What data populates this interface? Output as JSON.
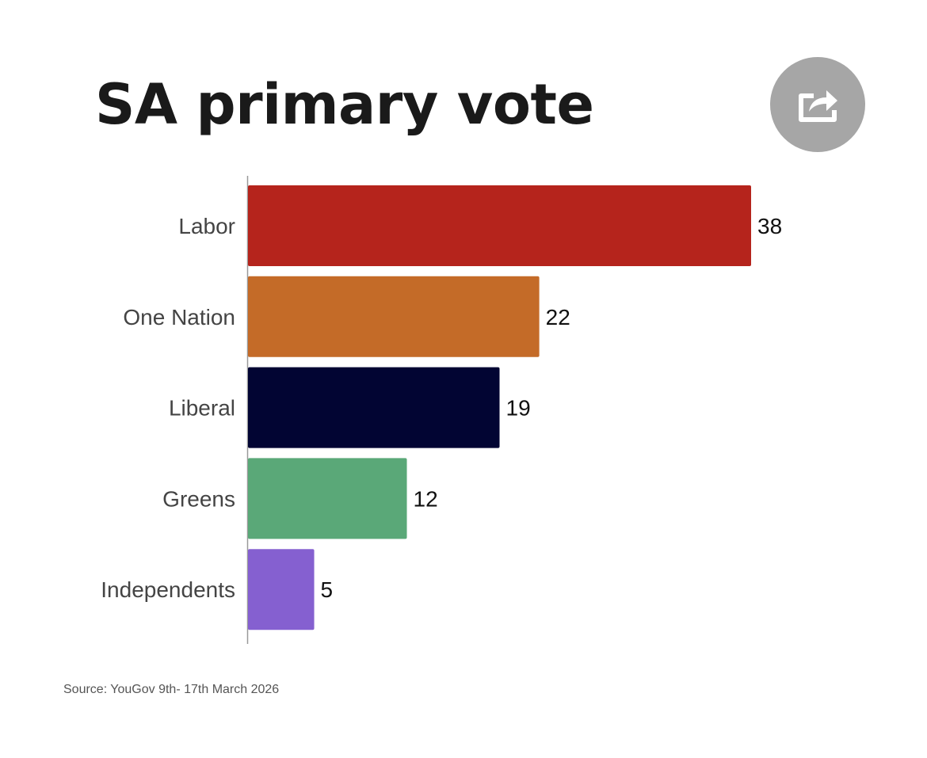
{
  "title": "SA primary vote",
  "share": {
    "icon": "share-icon"
  },
  "source": "Source: YouGov 9th- 17th March 2026",
  "chart_data": {
    "type": "bar",
    "orientation": "horizontal",
    "title": "SA primary vote",
    "categories": [
      "Labor",
      "One Nation",
      "Liberal",
      "Greens",
      "Independents"
    ],
    "values": [
      38,
      22,
      19,
      12,
      5
    ],
    "colors": [
      "#b5241c",
      "#c46b28",
      "#020533",
      "#5aa878",
      "#8560d0"
    ],
    "data_labels": [
      "38",
      "22",
      "19",
      "12",
      "5"
    ],
    "xlabel": "",
    "ylabel": "",
    "grid": false,
    "legend": "none"
  }
}
